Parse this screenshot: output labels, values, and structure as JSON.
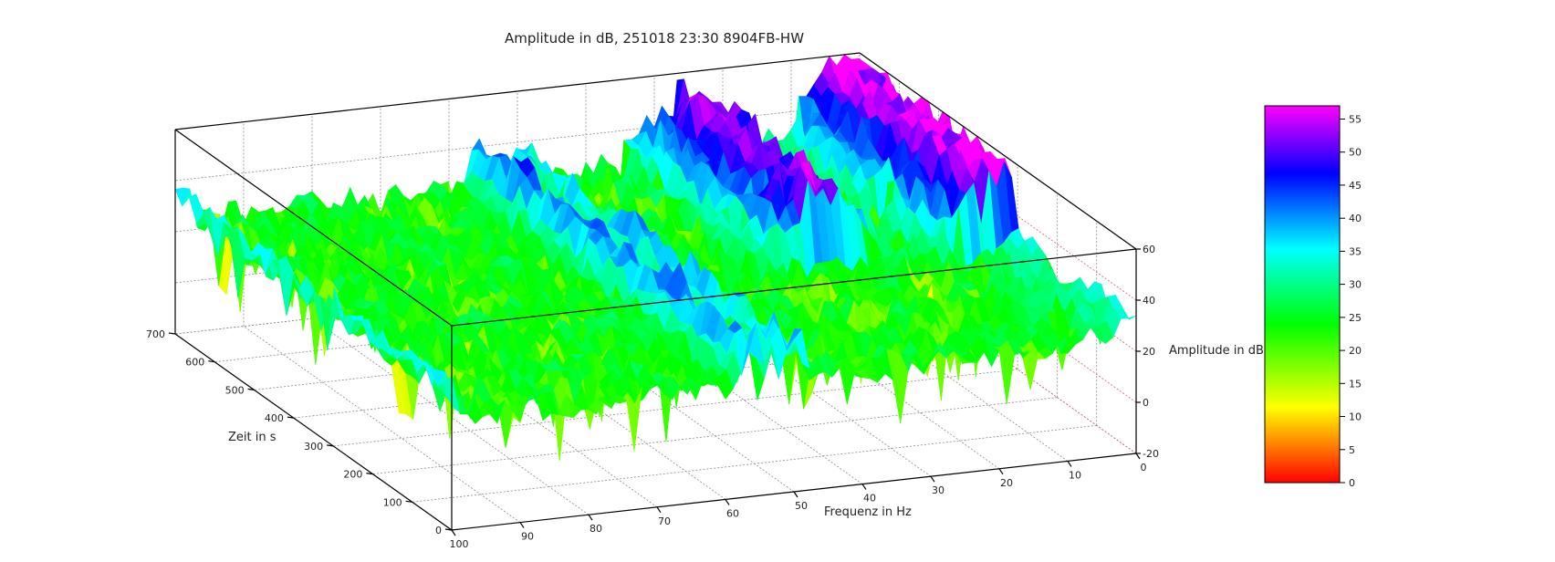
{
  "chart_data": {
    "type": "surface",
    "title": "Amplitude in dB, 251018 23:30 8904FB-HW",
    "xlabel": "Frequenz in Hz",
    "ylabel": "Zeit in s",
    "zlabel": "Amplitude in dB",
    "x_ticks": [
      "100",
      "90",
      "80",
      "70",
      "60",
      "50",
      "40",
      "30",
      "20",
      "10",
      "0"
    ],
    "y_ticks": [
      "0",
      "100",
      "200",
      "300",
      "400",
      "500",
      "600",
      "700"
    ],
    "z_ticks": [
      "-20",
      "0",
      "20",
      "40",
      "60"
    ],
    "xlim": [
      0,
      100
    ],
    "ylim": [
      0,
      700
    ],
    "zlim": [
      -20,
      60
    ],
    "colorbar": {
      "ticks": [
        "0",
        "5",
        "10",
        "15",
        "20",
        "25",
        "30",
        "35",
        "40",
        "45",
        "50",
        "55"
      ],
      "range": [
        0,
        57
      ],
      "colors": [
        "#ff0000",
        "#ff8000",
        "#ffff00",
        "#00ff00",
        "#00ffff",
        "#0000ff",
        "#ff00ff"
      ]
    },
    "grid": true,
    "surface_features": [
      {
        "description_freq_hz": 3,
        "time_range_s": [
          300,
          700
        ],
        "peak_db": 55
      },
      {
        "description_freq_hz": 26,
        "time_range_s": [
          350,
          700
        ],
        "peak_db": 56
      },
      {
        "description_freq_hz": 50,
        "time_range_s": [
          0,
          700
        ],
        "peak_db": 40
      },
      {
        "description_freq_hz": 56,
        "time_range_s": [
          0,
          700
        ],
        "peak_db": 44
      },
      {
        "description_freq_hz": 100,
        "time_range_s": [
          0,
          700
        ],
        "peak_db": 36
      }
    ],
    "baseline_db": 24
  }
}
